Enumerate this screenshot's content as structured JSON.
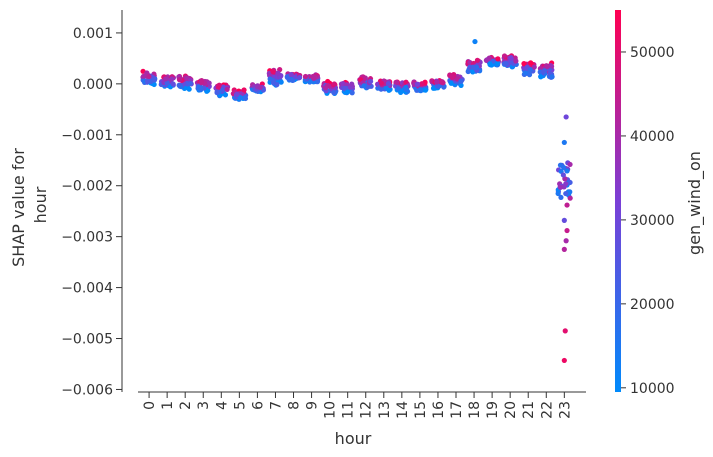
{
  "chart_data": {
    "type": "scatter",
    "title": "",
    "xlabel": "hour",
    "ylabel": [
      "SHAP value for",
      "hour"
    ],
    "x_ticks": [
      "0",
      "1",
      "2",
      "3",
      "4",
      "5",
      "6",
      "7",
      "8",
      "9",
      "10",
      "11",
      "12",
      "13",
      "14",
      "15",
      "16",
      "17",
      "18",
      "19",
      "20",
      "21",
      "22",
      "23"
    ],
    "y_ticks": [
      "0.001",
      "0.000",
      "−0.001",
      "−0.002",
      "−0.003",
      "−0.004",
      "−0.005",
      "−0.006"
    ],
    "y_tick_values": [
      0.001,
      0.0,
      -0.001,
      -0.002,
      -0.003,
      -0.004,
      -0.005,
      -0.006
    ],
    "ylim": [
      -0.00605,
      0.00145
    ],
    "xlim": [
      -1.5,
      24.2
    ],
    "grid": false,
    "colorbar": {
      "label": "gen_wind_on",
      "ticks": [
        "10000",
        "20000",
        "30000",
        "40000",
        "50000"
      ],
      "tick_values": [
        10000,
        20000,
        30000,
        40000,
        50000
      ],
      "range": [
        9500,
        55000
      ],
      "color_low": "#008afb",
      "color_mid": "#7a3fd6",
      "color_high": "#ff0052"
    },
    "hour_profiles": [
      {
        "hour": 0,
        "mean": 0.00012,
        "spread": 0.00022
      },
      {
        "hour": 1,
        "mean": 4e-05,
        "spread": 0.00016
      },
      {
        "hour": 2,
        "mean": 3e-05,
        "spread": 0.00022
      },
      {
        "hour": 3,
        "mean": -4e-05,
        "spread": 0.00018
      },
      {
        "hour": 4,
        "mean": -0.00012,
        "spread": 0.0002
      },
      {
        "hour": 5,
        "mean": -0.00022,
        "spread": 0.00016
      },
      {
        "hour": 6,
        "mean": -8e-05,
        "spread": 0.00014
      },
      {
        "hour": 7,
        "mean": 0.00012,
        "spread": 0.00026
      },
      {
        "hour": 8,
        "mean": 0.00014,
        "spread": 0.00012
      },
      {
        "hour": 9,
        "mean": 0.0001,
        "spread": 0.00014
      },
      {
        "hour": 10,
        "mean": -8e-05,
        "spread": 0.0002
      },
      {
        "hour": 11,
        "mean": -6e-05,
        "spread": 0.0002
      },
      {
        "hour": 12,
        "mean": 3e-05,
        "spread": 0.0002
      },
      {
        "hour": 13,
        "mean": -3e-05,
        "spread": 0.00018
      },
      {
        "hour": 14,
        "mean": -6e-05,
        "spread": 0.00018
      },
      {
        "hour": 15,
        "mean": -5e-05,
        "spread": 0.00016
      },
      {
        "hour": 16,
        "mean": 0.0,
        "spread": 0.00016
      },
      {
        "hour": 17,
        "mean": 8e-05,
        "spread": 0.00018
      },
      {
        "hour": 18,
        "mean": 0.00034,
        "spread": 0.0002
      },
      {
        "hour": 19,
        "mean": 0.00044,
        "spread": 0.00014
      },
      {
        "hour": 20,
        "mean": 0.00044,
        "spread": 0.0002
      },
      {
        "hour": 21,
        "mean": 0.0003,
        "spread": 0.00022
      },
      {
        "hour": 22,
        "mean": 0.00026,
        "spread": 0.00026
      },
      {
        "hour": 23,
        "mean": -0.0019,
        "spread": 0.0006
      }
    ],
    "special_points": [
      {
        "x": 18.05,
        "y": 0.00083,
        "gen_wind_on": 12000
      },
      {
        "x": 23.1,
        "y": -0.00065,
        "gen_wind_on": 30000
      },
      {
        "x": 23.0,
        "y": -0.00115,
        "gen_wind_on": 15000
      },
      {
        "x": 23.05,
        "y": -0.00485,
        "gen_wind_on": 50000
      },
      {
        "x": 23.0,
        "y": -0.00543,
        "gen_wind_on": 52000
      },
      {
        "x": 23.0,
        "y": -0.00325,
        "gen_wind_on": 42000
      },
      {
        "x": 23.1,
        "y": -0.00308,
        "gen_wind_on": 40000
      },
      {
        "x": 23.15,
        "y": -0.00288,
        "gen_wind_on": 45000
      },
      {
        "x": 23.15,
        "y": -0.00238,
        "gen_wind_on": 44000
      },
      {
        "x": 23.0,
        "y": -0.00268,
        "gen_wind_on": 28000
      }
    ]
  }
}
